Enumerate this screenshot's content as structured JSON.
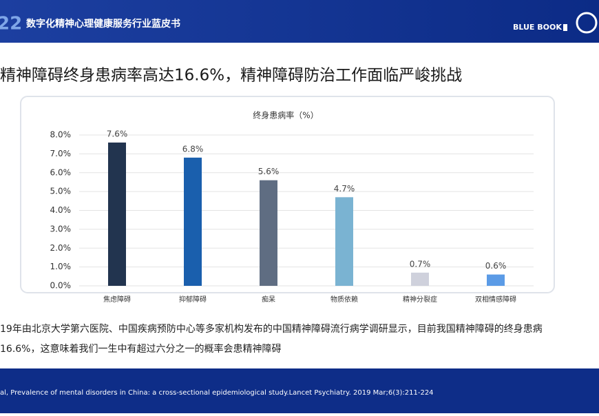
{
  "header": {
    "logo": "22",
    "title": "数字化精神心理健康服务行业蓝皮书",
    "brand": "BLUE BOOK"
  },
  "heading": "精神障碍终身患病率高达16.6%，精神障碍防治工作面临严峻挑战",
  "chart_data": {
    "type": "bar",
    "title": "终身患病率（%）",
    "categories": [
      "焦虑障碍",
      "抑郁障碍",
      "痴呆",
      "物质依赖",
      "精神分裂症",
      "双相情感障碍"
    ],
    "values": [
      7.6,
      6.8,
      5.6,
      4.7,
      0.7,
      0.6
    ],
    "value_labels": [
      "7.6%",
      "6.8%",
      "5.6%",
      "4.7%",
      "0.7%",
      "0.6%"
    ],
    "colors": [
      "#22344f",
      "#1a5fad",
      "#5f6d82",
      "#7ab3d2",
      "#cfd1dc",
      "#5b9be6"
    ],
    "ylim": [
      0,
      8
    ],
    "yticks": [
      {
        "value": 0,
        "label": "0.0%"
      },
      {
        "value": 1,
        "label": "1.0%"
      },
      {
        "value": 2,
        "label": "2.0%"
      },
      {
        "value": 3,
        "label": "3.0%"
      },
      {
        "value": 4,
        "label": "4.0%"
      },
      {
        "value": 5,
        "label": "5.0%"
      },
      {
        "value": 6,
        "label": "6.0%"
      },
      {
        "value": 7,
        "label": "7.0%"
      },
      {
        "value": 8,
        "label": "8.0%"
      }
    ],
    "grid": true
  },
  "body": [
    "19年由北京大学第六医院、中国疾病预防中心等多家机构发布的中国精神障碍流行病学调研显示，目前我国精神障碍的终身患病",
    "16.6%，这意味着我们一生中有超过六分之一的概率会患精神障碍"
  ],
  "footer": "al, Prevalence of mental disorders in China:  a cross-sectional  epidemiological study.Lancet Psychiatry. 2019 Mar;6(3):211-224"
}
